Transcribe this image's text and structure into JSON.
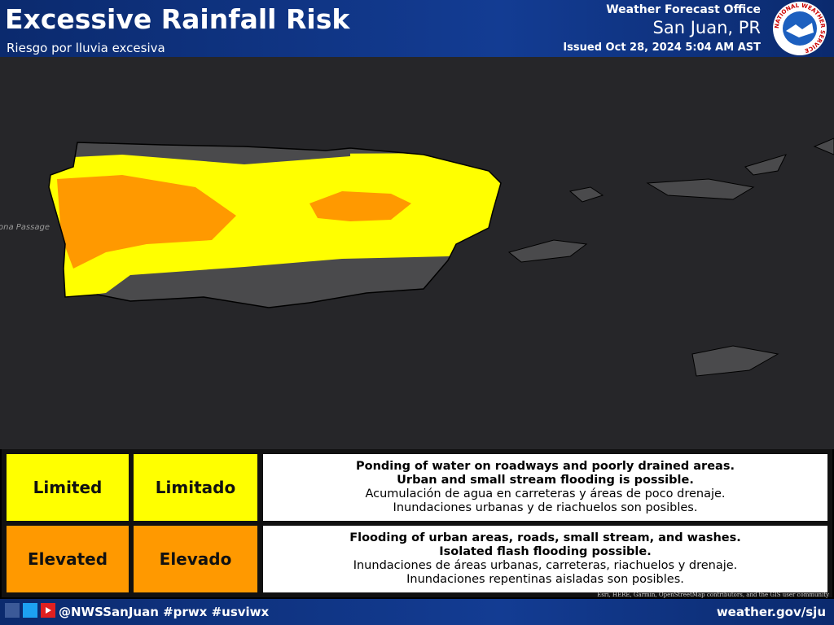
{
  "header": {
    "title": "Excessive Rainfall Risk",
    "subtitle": "Riesgo por lluvia excesiva",
    "office": "Weather Forecast Office",
    "location": "San Juan, PR",
    "issued": "Issued Oct 28, 2024 5:04 AM AST",
    "logo_text": "NATIONAL WEATHER SERVICE"
  },
  "map": {
    "label": "ona Passage",
    "attribution": "Esri, HERE, Garmin, OpenStreetMap contributors, and the GIS user community"
  },
  "legend": {
    "rows": [
      {
        "en": "Limited",
        "es": "Limitado",
        "color": "#ffff00",
        "lines": [
          "Ponding of water on roadways and poorly drained areas.",
          "Urban and small stream flooding is possible.",
          "Acumulación de agua en carreteras y áreas de poco drenaje.",
          "Inundaciones urbanas y de riachuelos son posibles."
        ]
      },
      {
        "en": "Elevated",
        "es": "Elevado",
        "color": "#ff9900",
        "lines": [
          "Flooding of urban areas, roads, small stream, and washes.",
          "Isolated flash flooding possible.",
          "Inundaciones de áreas urbanas, carreteras, riachuelos y drenaje.",
          "Inundaciones repentinas aisladas son posibles."
        ]
      }
    ]
  },
  "footer": {
    "handle": "@NWSSanJuan #prwx #usviwx",
    "url": "weather.gov/sju"
  }
}
